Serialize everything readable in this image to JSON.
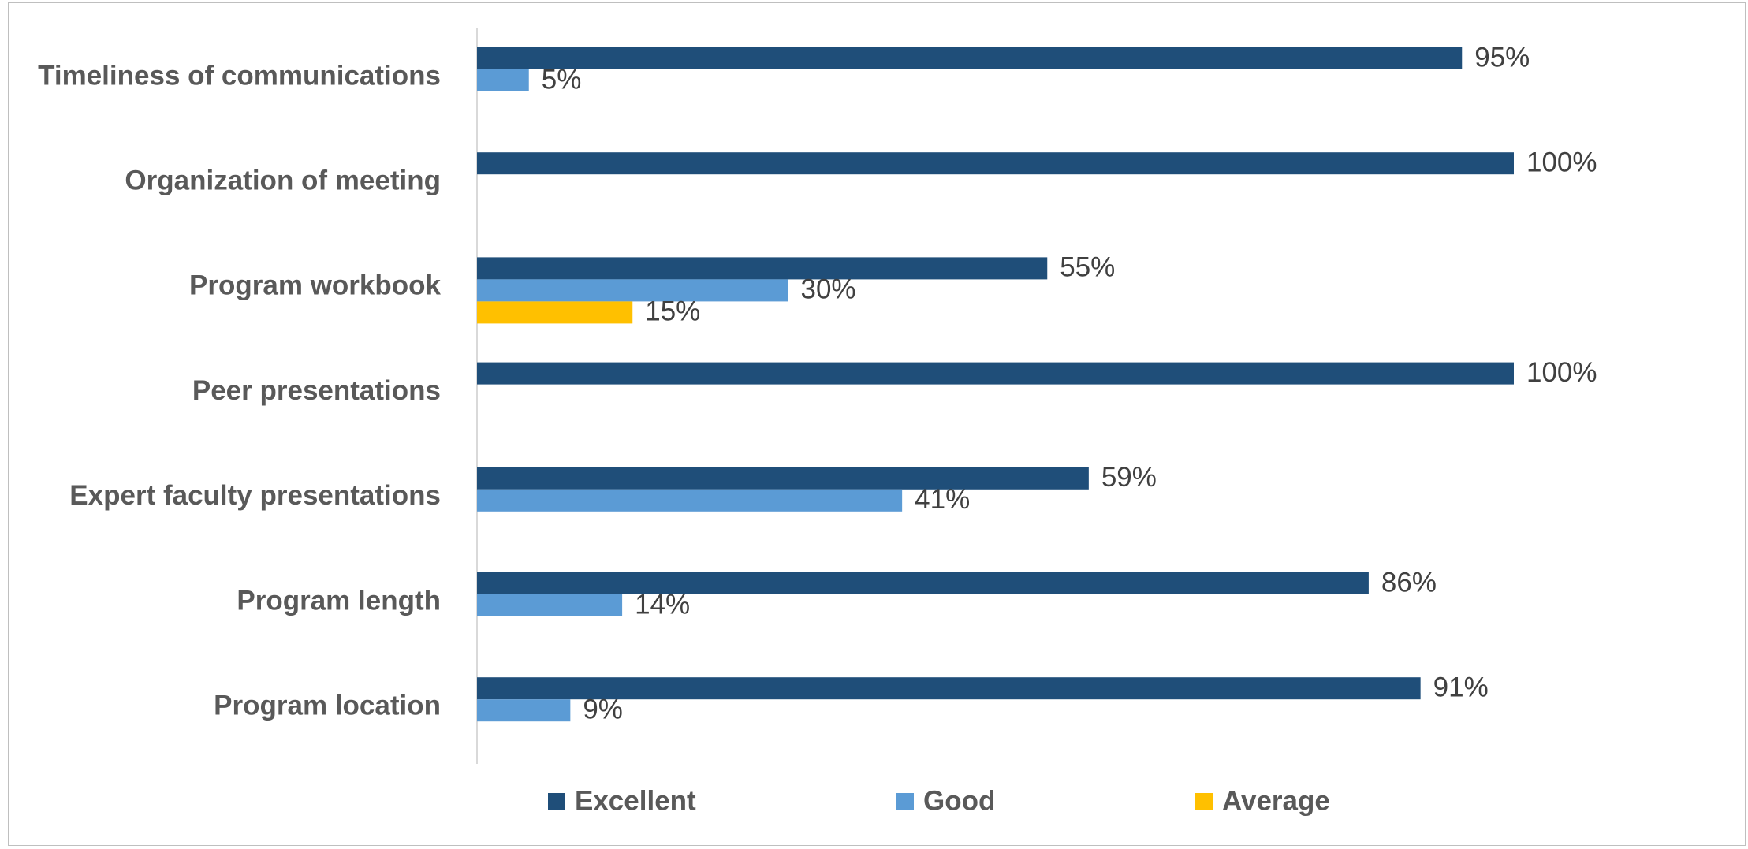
{
  "chart_data": {
    "type": "bar",
    "orientation": "horizontal",
    "title": "",
    "xlabel": "",
    "ylabel": "",
    "xlim": [
      0,
      100
    ],
    "grid": false,
    "legend_position": "bottom",
    "categories": [
      "Timeliness of communications",
      "Organization of meeting",
      "Program workbook",
      "Peer presentations",
      "Expert faculty presentations",
      "Program length",
      "Program location"
    ],
    "series": [
      {
        "name": "Excellent",
        "color": "#1f4e79",
        "values": [
          95,
          100,
          55,
          100,
          59,
          86,
          91
        ],
        "labels": [
          "95%",
          "100%",
          "55%",
          "100%",
          "59%",
          "86%",
          "91%"
        ]
      },
      {
        "name": "Good",
        "color": "#5b9bd5",
        "values": [
          5,
          null,
          30,
          null,
          41,
          14,
          9
        ],
        "labels": [
          "5%",
          null,
          "30%",
          null,
          "41%",
          "14%",
          "9%"
        ]
      },
      {
        "name": "Average",
        "color": "#ffc000",
        "values": [
          null,
          null,
          15,
          null,
          null,
          null,
          null
        ],
        "labels": [
          null,
          null,
          "15%",
          null,
          null,
          null,
          null
        ]
      }
    ]
  }
}
